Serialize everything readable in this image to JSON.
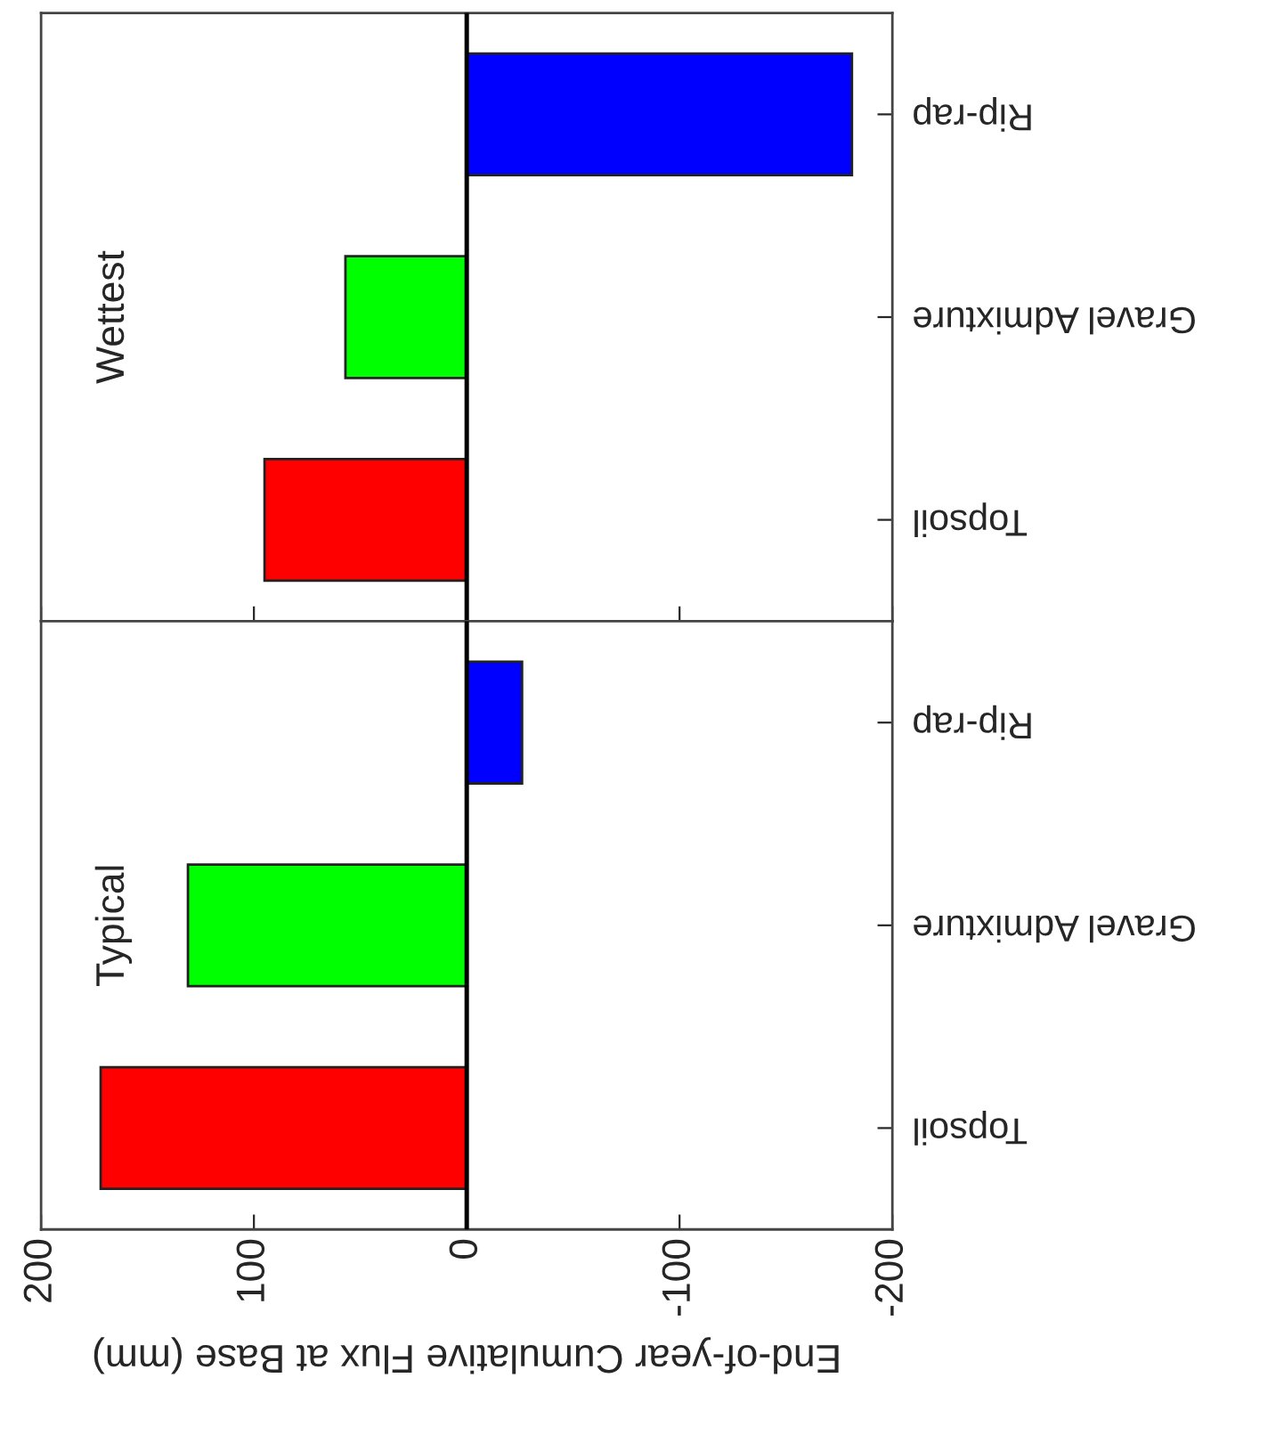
{
  "chart_data": [
    {
      "type": "bar",
      "orientation": "horizontal",
      "title": "Wettest",
      "categories": [
        "Rip-rap",
        "Gravel Admixture",
        "Topsoil"
      ],
      "values": [
        -181,
        57,
        95
      ],
      "colors": [
        "#0000ff",
        "#00ff00",
        "#ff0000"
      ],
      "xlim": [
        200,
        -200
      ],
      "xticks": [
        200,
        100,
        0,
        -100,
        -200
      ],
      "tick_labels": "y",
      "ref_lines": [
        {
          "axis": "x",
          "value": 0
        }
      ]
    },
    {
      "type": "bar",
      "orientation": "horizontal",
      "title": "Typical",
      "xlabel": "End-of-year Cumulative Flux at Base (mm)",
      "categories": [
        "Rip-rap",
        "Gravel Admixture",
        "Topsoil"
      ],
      "values": [
        -26,
        131,
        172
      ],
      "colors": [
        "#0000ff",
        "#00ff00",
        "#ff0000"
      ],
      "xlim": [
        200,
        -200
      ],
      "xticks": [
        200,
        100,
        0,
        -100,
        -200
      ],
      "ref_lines": [
        {
          "axis": "x",
          "value": 0
        }
      ]
    }
  ]
}
